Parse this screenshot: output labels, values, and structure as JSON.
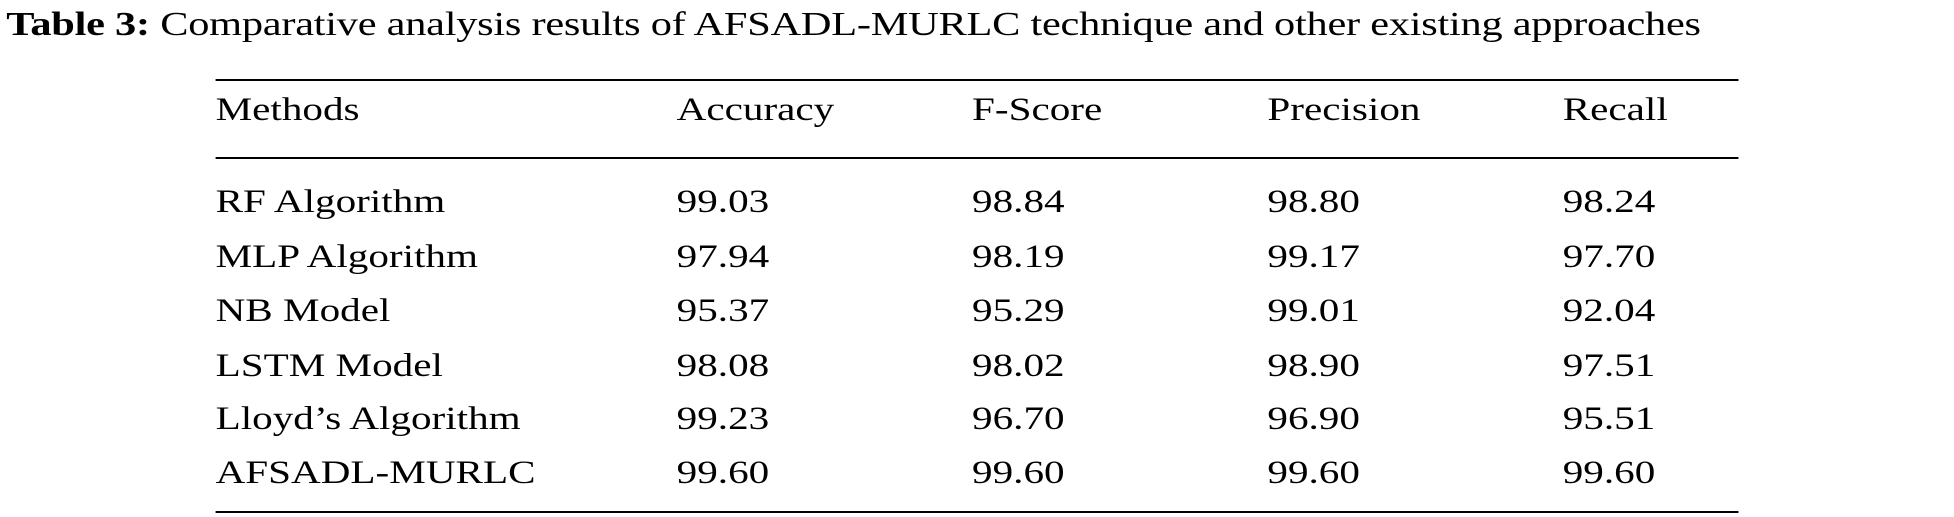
{
  "caption": {
    "label": "Table 3:",
    "text": "Comparative analysis results of AFSADL-MURLC technique and other existing approaches"
  },
  "table": {
    "headers": [
      "Methods",
      "Accuracy",
      "F-Score",
      "Precision",
      "Recall"
    ],
    "rows": [
      [
        "RF Algorithm",
        "99.03",
        "98.84",
        "98.80",
        "98.24"
      ],
      [
        "MLP Algorithm",
        "97.94",
        "98.19",
        "99.17",
        "97.70"
      ],
      [
        "NB Model",
        "95.37",
        "95.29",
        "99.01",
        "92.04"
      ],
      [
        "LSTM Model",
        "98.08",
        "98.02",
        "98.90",
        "97.51"
      ],
      [
        "Lloyd’s Algorithm",
        "99.23",
        "96.70",
        "96.90",
        "95.51"
      ],
      [
        "AFSADL-MURLC",
        "99.60",
        "99.60",
        "99.60",
        "99.60"
      ]
    ]
  }
}
